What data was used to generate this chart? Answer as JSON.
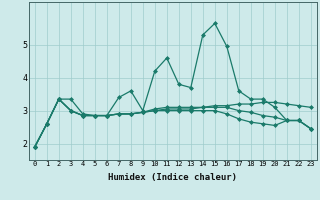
{
  "title": "",
  "xlabel": "Humidex (Indice chaleur)",
  "x_values": [
    0,
    1,
    2,
    3,
    4,
    5,
    6,
    7,
    8,
    9,
    10,
    11,
    12,
    13,
    14,
    15,
    16,
    17,
    18,
    19,
    20,
    21,
    22,
    23
  ],
  "line1": [
    1.9,
    2.6,
    3.35,
    3.35,
    2.9,
    2.85,
    2.85,
    3.4,
    3.6,
    3.0,
    4.2,
    4.6,
    3.8,
    3.7,
    5.3,
    5.65,
    4.95,
    3.6,
    3.35,
    3.35,
    3.1,
    2.7,
    2.7,
    2.45
  ],
  "line2": [
    1.9,
    2.6,
    3.35,
    3.0,
    2.85,
    2.85,
    2.85,
    2.9,
    2.9,
    2.95,
    3.0,
    3.05,
    3.05,
    3.05,
    3.1,
    3.15,
    3.15,
    3.2,
    3.2,
    3.25,
    3.25,
    3.2,
    3.15,
    3.1
  ],
  "line3": [
    1.9,
    2.6,
    3.35,
    3.0,
    2.85,
    2.85,
    2.85,
    2.9,
    2.9,
    2.95,
    3.05,
    3.1,
    3.1,
    3.1,
    3.1,
    3.1,
    3.1,
    3.0,
    2.95,
    2.85,
    2.8,
    2.7,
    2.7,
    2.45
  ],
  "line4": [
    1.9,
    2.6,
    3.35,
    3.0,
    2.85,
    2.85,
    2.85,
    2.9,
    2.9,
    2.95,
    3.0,
    3.0,
    3.0,
    3.0,
    3.0,
    3.0,
    2.9,
    2.75,
    2.65,
    2.6,
    2.55,
    2.7,
    2.7,
    2.45
  ],
  "line_color": "#1a7a6a",
  "bg_color": "#ceeaea",
  "grid_color": "#a0cccc",
  "ylim": [
    1.5,
    6.3
  ],
  "yticks": [
    2,
    3,
    4,
    5
  ],
  "xlim": [
    -0.5,
    23.5
  ]
}
